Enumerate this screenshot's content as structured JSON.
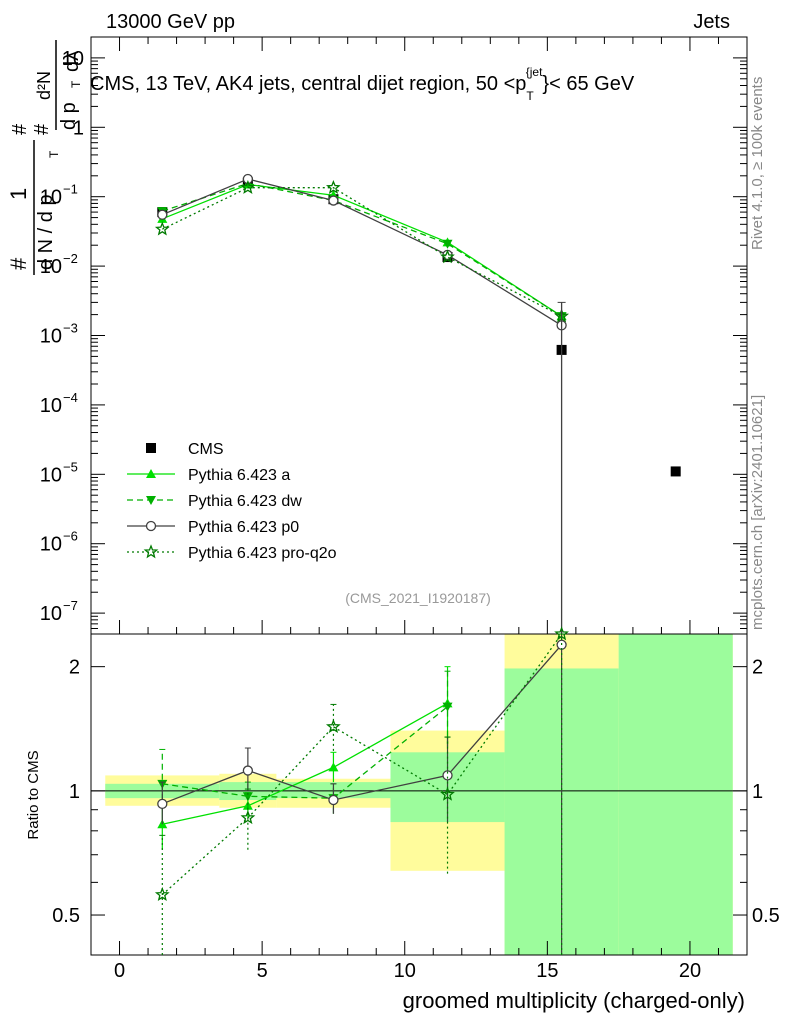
{
  "header": {
    "left_label": "13000 GeV pp",
    "right_label": "Jets"
  },
  "side_labels": {
    "rivet": "Rivet 4.1.0, ≥ 100k events",
    "mcplots": "mcplots.cern.ch [arXiv:2401.10621]"
  },
  "colors": {
    "cms": "#000000",
    "pythia_a": "#00e000",
    "pythia_dw": "#00b000",
    "pythia_p0": "#404040",
    "pythia_pro_q2o": "#007a00",
    "band_stat": "#9cfc9c",
    "band_total": "#fffc9c"
  },
  "chart_data": [
    {
      "id": "main",
      "type": "scatter",
      "title": "CMS, 13 TeV, AK4 jets, central dijet region, 50 <p_T^{jet}< 65 GeV",
      "title_parts": {
        "prefix": "CMS, 13 TeV, AK4 jets, central dijet region, 50 <",
        "p": "p",
        "sub": "T",
        "sup": "{jet",
        "suffix": "}< 65 GeV"
      },
      "ylabel_parts": {
        "hash": "#",
        "one": "1",
        "dN": "d N / d p",
        "T": "T",
        "d2N": "d²N",
        "dpT": "d p",
        "dlambda": "dλ"
      },
      "yscale": "log",
      "ylim": [
        5e-08,
        20
      ],
      "xlim": [
        -1,
        22
      ],
      "y_ticks": [
        {
          "value": 10,
          "label": "10"
        },
        {
          "value": 1,
          "label": "1"
        },
        {
          "value": 0.1,
          "label": "10",
          "exp": "−1"
        },
        {
          "value": 0.01,
          "label": "10",
          "exp": "−2"
        },
        {
          "value": 0.001,
          "label": "10",
          "exp": "−3"
        },
        {
          "value": 0.0001,
          "label": "10",
          "exp": "−4"
        },
        {
          "value": 1e-05,
          "label": "10",
          "exp": "−5"
        },
        {
          "value": 1e-06,
          "label": "10",
          "exp": "−6"
        },
        {
          "value": 1e-07,
          "label": "10",
          "exp": "−7"
        }
      ],
      "watermark": "(CMS_2021_I1920187)",
      "series": [
        {
          "name": "CMS",
          "style": "square",
          "points": [
            {
              "x": 1.5,
              "y": 0.06
            },
            {
              "x": 4.5,
              "y": 0.16
            },
            {
              "x": 7.5,
              "y": 0.092
            },
            {
              "x": 11.5,
              "y": 0.0135
            },
            {
              "x": 15.5,
              "y": 0.00062
            },
            {
              "x": 19.5,
              "y": 1.1e-05
            }
          ]
        },
        {
          "name": "Pythia 6.423 a",
          "style": "triangle-up",
          "line": "solid",
          "points": [
            {
              "x": 1.5,
              "y": 0.048
            },
            {
              "x": 4.5,
              "y": 0.15
            },
            {
              "x": 7.5,
              "y": 0.105
            },
            {
              "x": 11.5,
              "y": 0.022
            },
            {
              "x": 15.5,
              "y": 0.0019
            }
          ]
        },
        {
          "name": "Pythia 6.423 dw",
          "style": "triangle-down",
          "line": "dashed",
          "points": [
            {
              "x": 1.5,
              "y": 0.062
            },
            {
              "x": 4.5,
              "y": 0.155
            },
            {
              "x": 7.5,
              "y": 0.088
            },
            {
              "x": 11.5,
              "y": 0.021
            },
            {
              "x": 15.5,
              "y": 0.0019
            }
          ]
        },
        {
          "name": "Pythia 6.423 p0",
          "style": "circle-open",
          "line": "solid",
          "points": [
            {
              "x": 1.5,
              "y": 0.055
            },
            {
              "x": 4.5,
              "y": 0.18
            },
            {
              "x": 7.5,
              "y": 0.088
            },
            {
              "x": 11.5,
              "y": 0.0145
            },
            {
              "x": 15.5,
              "y": 0.0014
            }
          ]
        },
        {
          "name": "Pythia 6.423 pro-q2o",
          "style": "star-open",
          "line": "dotted",
          "points": [
            {
              "x": 1.5,
              "y": 0.034
            },
            {
              "x": 4.5,
              "y": 0.135
            },
            {
              "x": 7.5,
              "y": 0.135
            },
            {
              "x": 11.5,
              "y": 0.0135
            },
            {
              "x": 15.5,
              "y": 0.0019
            }
          ]
        }
      ]
    },
    {
      "id": "ratio",
      "type": "scatter",
      "ylabel": "Ratio to CMS",
      "xlabel": "groomed multiplicity (charged-only)",
      "yscale": "log",
      "ylim": [
        0.4,
        2.4
      ],
      "xlim": [
        -1,
        22
      ],
      "x_ticks": [
        0,
        5,
        10,
        15,
        20
      ],
      "y_ticks": [
        {
          "value": 0.5,
          "label": "0.5"
        },
        {
          "value": 1,
          "label": "1"
        },
        {
          "value": 2,
          "label": "2"
        }
      ],
      "bands": [
        {
          "x0": -0.5,
          "x1": 3.5,
          "stat": [
            0.96,
            1.04
          ],
          "total": [
            0.92,
            1.09
          ]
        },
        {
          "x0": 3.5,
          "x1": 5.5,
          "stat": [
            0.95,
            1.05
          ],
          "total": [
            0.91,
            1.1
          ]
        },
        {
          "x0": 5.5,
          "x1": 9.5,
          "stat": [
            0.96,
            1.05
          ],
          "total": [
            0.91,
            1.07
          ]
        },
        {
          "x0": 9.5,
          "x1": 13.5,
          "stat": [
            0.84,
            1.24
          ],
          "total": [
            0.64,
            1.4
          ]
        },
        {
          "x0": 13.5,
          "x1": 17.5,
          "stat": [
            0.35,
            1.98
          ],
          "total": [
            0.35,
            2.4
          ]
        },
        {
          "x0": 17.5,
          "x1": 21.5,
          "stat": [
            0.35,
            2.4
          ],
          "total": [
            0.35,
            2.4
          ]
        }
      ],
      "series": [
        {
          "name": "Pythia 6.423 a",
          "style": "triangle-up",
          "line": "solid",
          "points": [
            {
              "x": 1.5,
              "y": 0.83,
              "err": [
                0.72,
                0.95
              ]
            },
            {
              "x": 4.5,
              "y": 0.92,
              "err": [
                0.86,
                0.99
              ]
            },
            {
              "x": 7.5,
              "y": 1.14,
              "err": [
                1.05,
                1.24
              ]
            },
            {
              "x": 11.5,
              "y": 1.63,
              "err": [
                1.3,
                2.0
              ]
            }
          ]
        },
        {
          "name": "Pythia 6.423 dw",
          "style": "triangle-down",
          "line": "dashed",
          "points": [
            {
              "x": 1.5,
              "y": 1.04,
              "err": [
                0.9,
                1.26
              ]
            },
            {
              "x": 4.5,
              "y": 0.97,
              "err": [
                0.9,
                1.05
              ]
            },
            {
              "x": 7.5,
              "y": 0.96,
              "err": [
                0.88,
                1.04
              ]
            },
            {
              "x": 11.5,
              "y": 1.6,
              "err": [
                1.28,
                1.95
              ]
            }
          ]
        },
        {
          "name": "Pythia 6.423 p0",
          "style": "circle-open",
          "line": "solid",
          "points": [
            {
              "x": 1.5,
              "y": 0.93,
              "err": [
                0.83,
                1.05
              ]
            },
            {
              "x": 4.5,
              "y": 1.12,
              "err": [
                1.0,
                1.27
              ]
            },
            {
              "x": 7.5,
              "y": 0.95,
              "err": [
                0.88,
                1.04
              ]
            },
            {
              "x": 11.5,
              "y": 1.09,
              "err": [
                0.84,
                1.35
              ]
            },
            {
              "x": 15.5,
              "y": 2.26,
              "err": [
                0.3,
                2.4
              ]
            }
          ]
        },
        {
          "name": "Pythia 6.423 pro-q2o",
          "style": "star-open",
          "line": "dotted",
          "points": [
            {
              "x": 1.5,
              "y": 0.56,
              "err": [
                0.38,
                0.78
              ]
            },
            {
              "x": 4.5,
              "y": 0.86,
              "err": [
                0.72,
                1.01
              ]
            },
            {
              "x": 7.5,
              "y": 1.43,
              "err": [
                1.25,
                1.62
              ]
            },
            {
              "x": 11.5,
              "y": 0.98,
              "err": [
                0.63,
                1.35
              ]
            },
            {
              "x": 15.5,
              "y": 2.4,
              "err": [
                0.3,
                2.4
              ]
            }
          ]
        }
      ]
    }
  ]
}
